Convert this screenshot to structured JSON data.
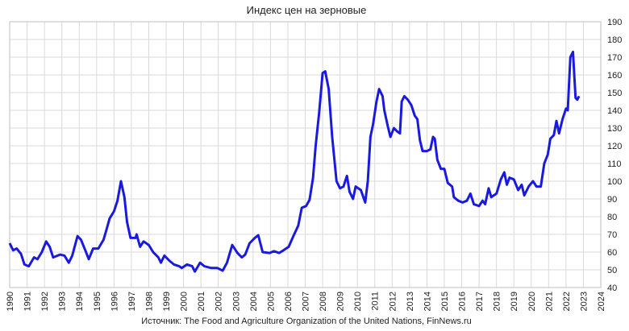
{
  "chart_data": {
    "type": "line",
    "title": "Индекс цен на зерновые",
    "source": "Источник: The Food and Agriculture Organization of the United Nations, FinNews.ru",
    "xlim": [
      1990,
      2024
    ],
    "ylim": [
      40,
      190
    ],
    "xticks": [
      1990,
      1991,
      1992,
      1993,
      1994,
      1995,
      1996,
      1997,
      1998,
      1999,
      2000,
      2001,
      2002,
      2003,
      2004,
      2005,
      2006,
      2007,
      2008,
      2009,
      2010,
      2011,
      2012,
      2013,
      2014,
      2015,
      2016,
      2017,
      2018,
      2019,
      2020,
      2021,
      2022,
      2023,
      2024
    ],
    "yticks": [
      40,
      50,
      60,
      70,
      80,
      90,
      100,
      110,
      120,
      130,
      140,
      150,
      160,
      170,
      180,
      190
    ],
    "grid": true,
    "series": [
      {
        "color": "#1a1adf",
        "x": [
          1990.0,
          1990.2,
          1990.4,
          1990.65,
          1990.85,
          1991.1,
          1991.4,
          1991.6,
          1991.85,
          1992.1,
          1992.3,
          1992.5,
          1992.9,
          1993.15,
          1993.4,
          1993.6,
          1993.9,
          1994.1,
          1994.35,
          1994.55,
          1994.8,
          1995.1,
          1995.4,
          1995.55,
          1995.75,
          1996.0,
          1996.2,
          1996.4,
          1996.6,
          1996.75,
          1996.95,
          1997.25,
          1997.3,
          1997.5,
          1997.7,
          1998.0,
          1998.25,
          1998.55,
          1998.7,
          1998.9,
          1999.2,
          1999.45,
          1999.75,
          1999.9,
          2000.2,
          2000.5,
          2000.65,
          2000.95,
          2001.2,
          2001.6,
          2001.95,
          2002.25,
          2002.5,
          2002.8,
          2003.1,
          2003.35,
          2003.55,
          2003.8,
          2004.1,
          2004.3,
          2004.55,
          2004.95,
          2005.2,
          2005.5,
          2005.75,
          2006.05,
          2006.3,
          2006.6,
          2006.8,
          2007.05,
          2007.25,
          2007.45,
          2007.6,
          2007.8,
          2008.0,
          2008.15,
          2008.35,
          2008.55,
          2008.8,
          2009.0,
          2009.2,
          2009.4,
          2009.55,
          2009.75,
          2009.9,
          2010.2,
          2010.45,
          2010.6,
          2010.75,
          2010.9,
          2011.1,
          2011.25,
          2011.45,
          2011.55,
          2011.75,
          2011.9,
          2012.1,
          2012.3,
          2012.45,
          2012.55,
          2012.7,
          2012.9,
          2013.1,
          2013.3,
          2013.45,
          2013.6,
          2013.75,
          2014.0,
          2014.2,
          2014.35,
          2014.45,
          2014.6,
          2014.8,
          2015.0,
          2015.2,
          2015.45,
          2015.55,
          2015.8,
          2016.05,
          2016.3,
          2016.5,
          2016.7,
          2017.0,
          2017.2,
          2017.35,
          2017.55,
          2017.7,
          2018.0,
          2018.25,
          2018.45,
          2018.6,
          2018.75,
          2019.0,
          2019.25,
          2019.45,
          2019.6,
          2019.85,
          2020.1,
          2020.3,
          2020.55,
          2020.75,
          2020.95,
          2021.1,
          2021.3,
          2021.45,
          2021.6,
          2021.8,
          2022.0,
          2022.1,
          2022.25,
          2022.4,
          2022.55,
          2022.65,
          2022.75
        ],
        "values": [
          65,
          61,
          62,
          59,
          53,
          52,
          57,
          56,
          60,
          66,
          63,
          57,
          58.6,
          58,
          54,
          58,
          69,
          67,
          61,
          56,
          62,
          62,
          67,
          72,
          79,
          83,
          89,
          100,
          91,
          77,
          68,
          68,
          70,
          63,
          66,
          64,
          60,
          57,
          54,
          58,
          55,
          53,
          52,
          51,
          53,
          52,
          49,
          54,
          52,
          51,
          51,
          49.5,
          54,
          64,
          59.5,
          57,
          58.6,
          65,
          68,
          69.5,
          60,
          59.5,
          60.5,
          59.5,
          61,
          63,
          68.6,
          75,
          85,
          86,
          89.5,
          102,
          120,
          138.6,
          161,
          162,
          152,
          125,
          100,
          96,
          97,
          103,
          94,
          90,
          97,
          95,
          88,
          100,
          125,
          132,
          145,
          152,
          148,
          140,
          131,
          125,
          130,
          128,
          127,
          145,
          148,
          146,
          143,
          137,
          135,
          123,
          117,
          117,
          118,
          125,
          124,
          112,
          107,
          107,
          99,
          97,
          91,
          89,
          88,
          89,
          93,
          87,
          86,
          89,
          87,
          96,
          91,
          93,
          101,
          105,
          98,
          102,
          101,
          95,
          98,
          92,
          97,
          100,
          97,
          97,
          110,
          115,
          124,
          126,
          134,
          127,
          135,
          141,
          140,
          170,
          173,
          147,
          146,
          148
        ]
      }
    ]
  }
}
